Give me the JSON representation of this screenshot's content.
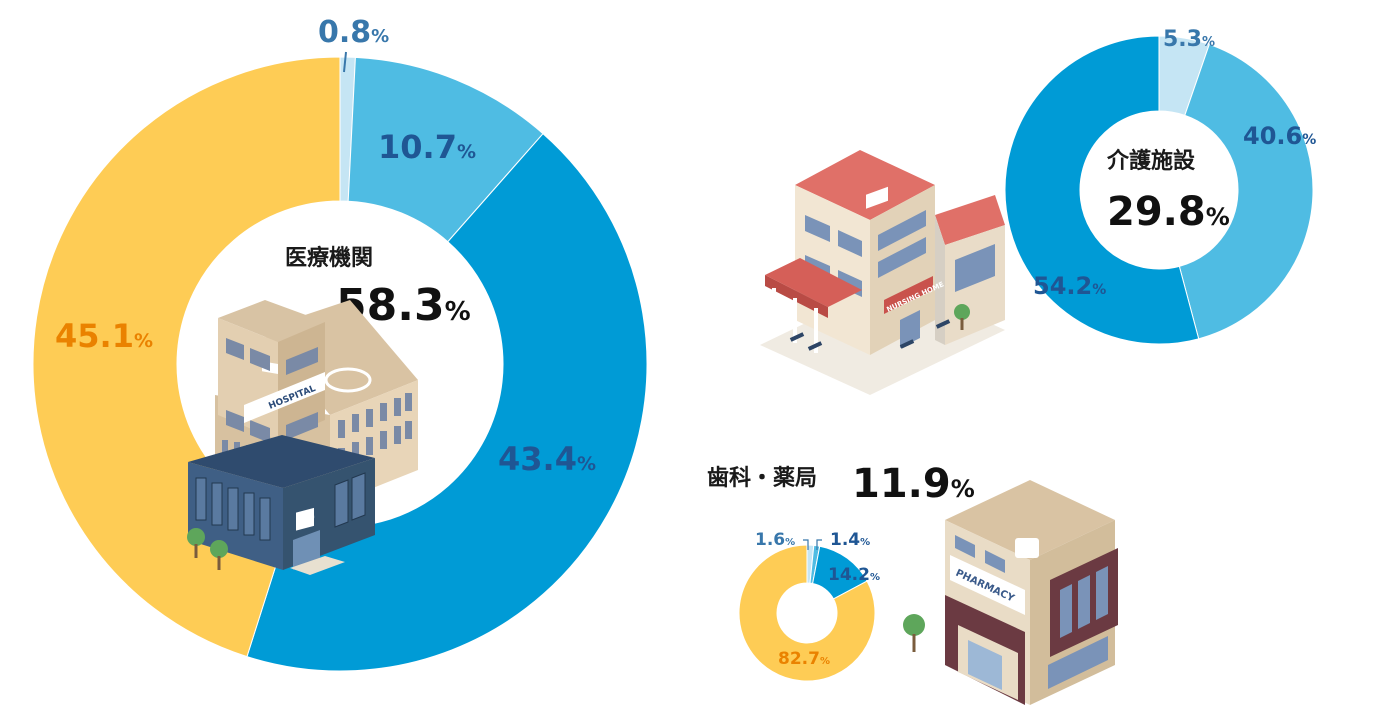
{
  "colors": {
    "slice_pale": "#c5e5f4",
    "slice_light": "#4fbce3",
    "slice_mid": "#009bd6",
    "slice_yellow": "#fecc55",
    "label_dark_blue": "#1f5694",
    "label_steel": "#3877ab",
    "label_orange": "#ea8200",
    "building_blue": "#4a6a90",
    "building_tan": "#e8d5b8",
    "roof_red": "#d96a63",
    "brick": "#6b3a42"
  },
  "icons": [
    "hospital-icon",
    "nursing-home-icon",
    "pharmacy-icon",
    "tree-icon"
  ],
  "chart_data": [
    {
      "type": "pie",
      "donut": true,
      "title": "医療機関",
      "total": "58.3",
      "unit": "%",
      "values": [
        0.8,
        10.7,
        43.4,
        45.1
      ],
      "labels": [
        "0.8",
        "10.7",
        "43.4",
        "45.1"
      ],
      "colors": [
        "#c5e5f4",
        "#4fbce3",
        "#009bd6",
        "#fecc55"
      ]
    },
    {
      "type": "pie",
      "donut": true,
      "title": "介護施設",
      "total": "29.8",
      "unit": "%",
      "values": [
        5.3,
        40.6,
        54.2
      ],
      "labels": [
        "5.3",
        "40.6",
        "54.2"
      ],
      "colors": [
        "#c5e5f4",
        "#4fbce3",
        "#009bd6"
      ]
    },
    {
      "type": "pie",
      "donut": true,
      "title": "歯科・薬局",
      "total": "11.9",
      "unit": "%",
      "values": [
        1.6,
        1.4,
        14.2,
        82.7
      ],
      "labels": [
        "1.6",
        "1.4",
        "14.2",
        "82.7"
      ],
      "colors": [
        "#c5e5f4",
        "#4fbce3",
        "#009bd6",
        "#fecc55"
      ]
    }
  ],
  "buildings": {
    "hospital_sign": "HOSPITAL",
    "nursing_sign": "NURSING HOME",
    "pharmacy_sign": "PHARMACY"
  }
}
